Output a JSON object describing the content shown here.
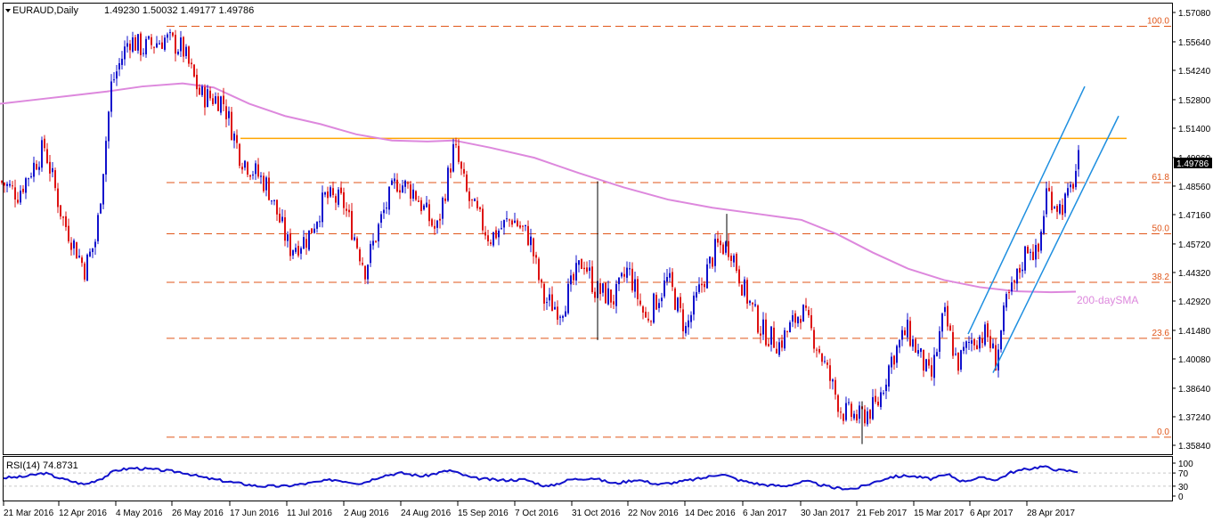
{
  "header": {
    "symbol": "EURAUD,Daily",
    "ohlc": "1.49230 1.50032 1.49177 1.49786"
  },
  "rsi_header": "RSI(14) 74.8731",
  "colors": {
    "bull": "#1111cc",
    "bear": "#dd1111",
    "fib": "#e0561a",
    "resistance": "#ffa500",
    "sma": "#dd88dd",
    "channel": "#1e8fe0",
    "rsi": "#1111cc",
    "grid": "#c8c8c8"
  },
  "chart_data": [
    {
      "type": "candlestick",
      "ylim": [
        1.3584,
        1.5708
      ],
      "y_ticks": [
        "1.57080",
        "1.55640",
        "1.54240",
        "1.52800",
        "1.51400",
        "1.49960",
        "1.48560",
        "1.47160",
        "1.45720",
        "1.44320",
        "1.42920",
        "1.41480",
        "1.40080",
        "1.38640",
        "1.37240",
        "1.35840"
      ],
      "x_ticks": [
        "21 Mar 2016",
        "12 Apr 2016",
        "4 May 2016",
        "26 May 2016",
        "17 Jun 2016",
        "11 Jul 2016",
        "2 Aug 2016",
        "24 Aug 2016",
        "15 Sep 2016",
        "7 Oct 2016",
        "31 Oct 2016",
        "22 Nov 2016",
        "14 Dec 2016",
        "6 Jan 2017",
        "30 Jan 2017",
        "21 Feb 2017",
        "15 Mar 2017",
        "6 Apr 2017",
        "28 Apr 2017"
      ],
      "last_price": "1.49786",
      "fibonacci": [
        {
          "label": "100.0",
          "value": 1.564
        },
        {
          "label": "61.8",
          "value": 1.4873
        },
        {
          "label": "50.0",
          "value": 1.4622
        },
        {
          "label": "38.2",
          "value": 1.4384
        },
        {
          "label": "23.6",
          "value": 1.4109
        },
        {
          "label": "0.0",
          "value": 1.3624
        }
      ],
      "resistance": 1.509,
      "sma_label": "200-daySMA",
      "sma_path": [
        [
          0,
          1.526
        ],
        [
          40,
          1.528
        ],
        [
          80,
          1.53
        ],
        [
          120,
          1.532
        ],
        [
          160,
          1.5345
        ],
        [
          205,
          1.536
        ],
        [
          240,
          1.534
        ],
        [
          280,
          1.526
        ],
        [
          320,
          1.52
        ],
        [
          360,
          1.516
        ],
        [
          400,
          1.511
        ],
        [
          440,
          1.508
        ],
        [
          480,
          1.5075
        ],
        [
          510,
          1.508
        ],
        [
          550,
          1.5045
        ],
        [
          600,
          1.4995
        ],
        [
          650,
          1.492
        ],
        [
          700,
          1.485
        ],
        [
          750,
          1.479
        ],
        [
          800,
          1.475
        ],
        [
          850,
          1.472
        ],
        [
          900,
          1.469
        ],
        [
          940,
          1.462
        ],
        [
          980,
          1.453
        ],
        [
          1020,
          1.445
        ],
        [
          1060,
          1.4395
        ],
        [
          1100,
          1.436
        ],
        [
          1140,
          1.434
        ],
        [
          1180,
          1.4335
        ],
        [
          1208,
          1.4338
        ]
      ],
      "channel": [
        {
          "from": [
            1087,
            1.413
          ],
          "to": [
            1218,
            1.5345
          ]
        },
        {
          "from": [
            1115,
            1.394
          ],
          "to": [
            1256,
            1.52
          ]
        }
      ],
      "candle_range": {
        "start": 0,
        "end": 1211
      },
      "price_anchors": [
        [
          0,
          1.488
        ],
        [
          20,
          1.482
        ],
        [
          50,
          1.505
        ],
        [
          70,
          1.47
        ],
        [
          95,
          1.445
        ],
        [
          108,
          1.46
        ],
        [
          125,
          1.535
        ],
        [
          145,
          1.558
        ],
        [
          160,
          1.553
        ],
        [
          185,
          1.558
        ],
        [
          205,
          1.553
        ],
        [
          225,
          1.53
        ],
        [
          250,
          1.528
        ],
        [
          270,
          1.5
        ],
        [
          300,
          1.486
        ],
        [
          325,
          1.455
        ],
        [
          345,
          1.46
        ],
        [
          365,
          1.48
        ],
        [
          385,
          1.478
        ],
        [
          410,
          1.445
        ],
        [
          430,
          1.472
        ],
        [
          445,
          1.488
        ],
        [
          465,
          1.483
        ],
        [
          490,
          1.463
        ],
        [
          510,
          1.505
        ],
        [
          525,
          1.48
        ],
        [
          550,
          1.46
        ],
        [
          575,
          1.47
        ],
        [
          595,
          1.46
        ],
        [
          610,
          1.43
        ],
        [
          630,
          1.425
        ],
        [
          655,
          1.45
        ],
        [
          668,
          1.435
        ],
        [
          690,
          1.43
        ],
        [
          705,
          1.445
        ],
        [
          725,
          1.42
        ],
        [
          750,
          1.44
        ],
        [
          770,
          1.415
        ],
        [
          790,
          1.44
        ],
        [
          805,
          1.456
        ],
        [
          820,
          1.456
        ],
        [
          835,
          1.435
        ],
        [
          855,
          1.415
        ],
        [
          875,
          1.408
        ],
        [
          900,
          1.425
        ],
        [
          920,
          1.405
        ],
        [
          945,
          1.375
        ],
        [
          965,
          1.372
        ],
        [
          985,
          1.378
        ],
        [
          1000,
          1.4
        ],
        [
          1018,
          1.415
        ],
        [
          1035,
          1.4
        ],
        [
          1045,
          1.39
        ],
        [
          1060,
          1.423
        ],
        [
          1075,
          1.398
        ],
        [
          1090,
          1.41
        ],
        [
          1108,
          1.413
        ],
        [
          1118,
          1.4
        ],
        [
          1130,
          1.428
        ],
        [
          1140,
          1.438
        ],
        [
          1155,
          1.458
        ],
        [
          1165,
          1.45
        ],
        [
          1175,
          1.483
        ],
        [
          1190,
          1.475
        ],
        [
          1200,
          1.48
        ],
        [
          1211,
          1.4979
        ]
      ],
      "spikes": [
        {
          "x": 671,
          "high": 1.488,
          "low": 1.41
        },
        {
          "x": 816,
          "high": 1.472,
          "low": 1.456
        },
        {
          "x": 968,
          "high": 1.38,
          "low": 1.359
        }
      ]
    },
    {
      "type": "line",
      "name": "RSI(14)",
      "ylim": [
        0,
        100
      ],
      "levels": [
        70,
        30
      ],
      "y_ticks": [
        "100",
        "70",
        "30",
        "0"
      ],
      "rsi_anchors": [
        [
          0,
          55
        ],
        [
          25,
          58
        ],
        [
          50,
          70
        ],
        [
          70,
          52
        ],
        [
          95,
          35
        ],
        [
          115,
          55
        ],
        [
          130,
          78
        ],
        [
          150,
          85
        ],
        [
          175,
          80
        ],
        [
          205,
          72
        ],
        [
          230,
          55
        ],
        [
          260,
          42
        ],
        [
          290,
          30
        ],
        [
          320,
          30
        ],
        [
          350,
          40
        ],
        [
          375,
          50
        ],
        [
          405,
          38
        ],
        [
          430,
          62
        ],
        [
          450,
          70
        ],
        [
          475,
          60
        ],
        [
          505,
          78
        ],
        [
          530,
          55
        ],
        [
          560,
          48
        ],
        [
          590,
          50
        ],
        [
          615,
          28
        ],
        [
          640,
          50
        ],
        [
          665,
          55
        ],
        [
          690,
          38
        ],
        [
          715,
          50
        ],
        [
          740,
          35
        ],
        [
          760,
          42
        ],
        [
          790,
          55
        ],
        [
          810,
          68
        ],
        [
          830,
          48
        ],
        [
          855,
          35
        ],
        [
          880,
          30
        ],
        [
          905,
          45
        ],
        [
          935,
          25
        ],
        [
          960,
          22
        ],
        [
          985,
          45
        ],
        [
          1000,
          58
        ],
        [
          1020,
          62
        ],
        [
          1045,
          52
        ],
        [
          1065,
          65
        ],
        [
          1080,
          45
        ],
        [
          1100,
          55
        ],
        [
          1120,
          50
        ],
        [
          1135,
          72
        ],
        [
          1150,
          80
        ],
        [
          1170,
          90
        ],
        [
          1190,
          78
        ],
        [
          1211,
          75
        ]
      ]
    }
  ]
}
